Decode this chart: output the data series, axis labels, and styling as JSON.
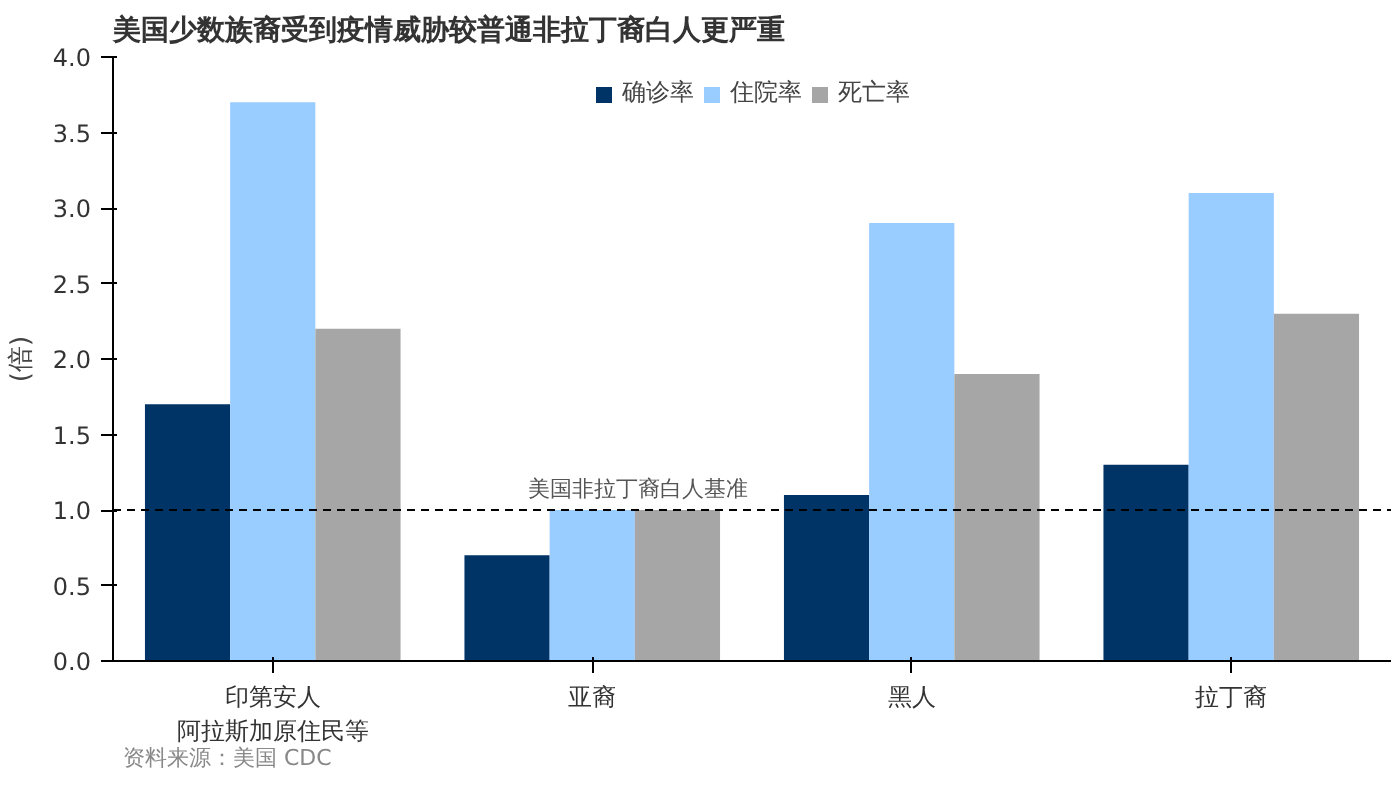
{
  "chart_data": {
    "type": "bar",
    "title": "美国少数族裔受到疫情威胁较普通非拉丁裔白人更严重",
    "ylabel": "(倍)",
    "categories": [
      "印第安人阿拉斯加原住民等",
      "亚裔",
      "黑人",
      "拉丁裔"
    ],
    "series": [
      {
        "name": "确诊率",
        "color": "#003366",
        "values": [
          1.7,
          0.7,
          1.1,
          1.3
        ]
      },
      {
        "name": "住院率",
        "color": "#99ccff",
        "values": [
          3.7,
          1.0,
          2.9,
          3.1
        ]
      },
      {
        "name": "死亡率",
        "color": "#a6a6a6",
        "values": [
          2.2,
          1.0,
          1.9,
          2.3
        ]
      }
    ],
    "ylim": [
      0,
      4
    ],
    "yticks": [
      {
        "value": 0,
        "label": "0.0"
      },
      0.5,
      {
        "value": 1,
        "label": "1.0"
      },
      1.5,
      {
        "value": 2,
        "label": "2.0"
      },
      2.5,
      {
        "value": 3,
        "label": "3.0"
      },
      3.5,
      {
        "value": 4,
        "label": "4.0"
      }
    ],
    "ref_lines": [
      {
        "axis": "y",
        "value": 1.0,
        "label": "美国非拉丁裔白人基准",
        "line_style": "dashed",
        "color": "#000000"
      }
    ],
    "annotations": [
      "资料来源：美国 CDC"
    ],
    "legend": "top",
    "grid": false
  }
}
